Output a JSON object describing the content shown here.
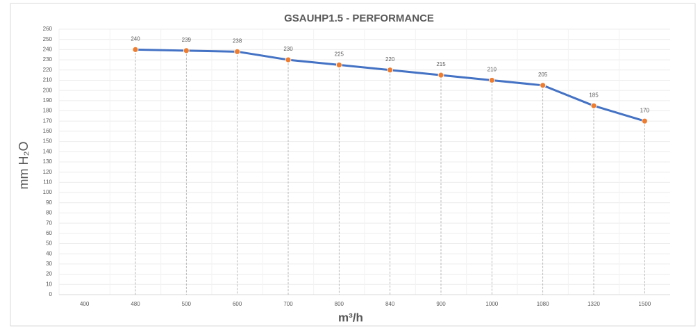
{
  "chart_data": {
    "type": "line",
    "title": "GSAUHP1.5 - PERFORMANCE",
    "x_label": "m³/h",
    "y_label": "mm H₂O",
    "categories": [
      "400",
      "480",
      "500",
      "600",
      "700",
      "800",
      "840",
      "900",
      "1000",
      "1080",
      "1320",
      "1500"
    ],
    "series": [
      {
        "name": "mm H₂O",
        "color": "#4472c4",
        "marker_color": "#ed7d31",
        "values": [
          null,
          240,
          239,
          238,
          230,
          225,
          220,
          215,
          210,
          205,
          185,
          170
        ]
      }
    ],
    "ylim": [
      0,
      260
    ],
    "yticks": [
      0,
      10,
      20,
      30,
      40,
      50,
      60,
      70,
      80,
      90,
      100,
      110,
      120,
      130,
      140,
      150,
      160,
      170,
      180,
      190,
      200,
      210,
      220,
      230,
      240,
      250,
      260
    ],
    "grid": true,
    "drop_lines": true
  }
}
